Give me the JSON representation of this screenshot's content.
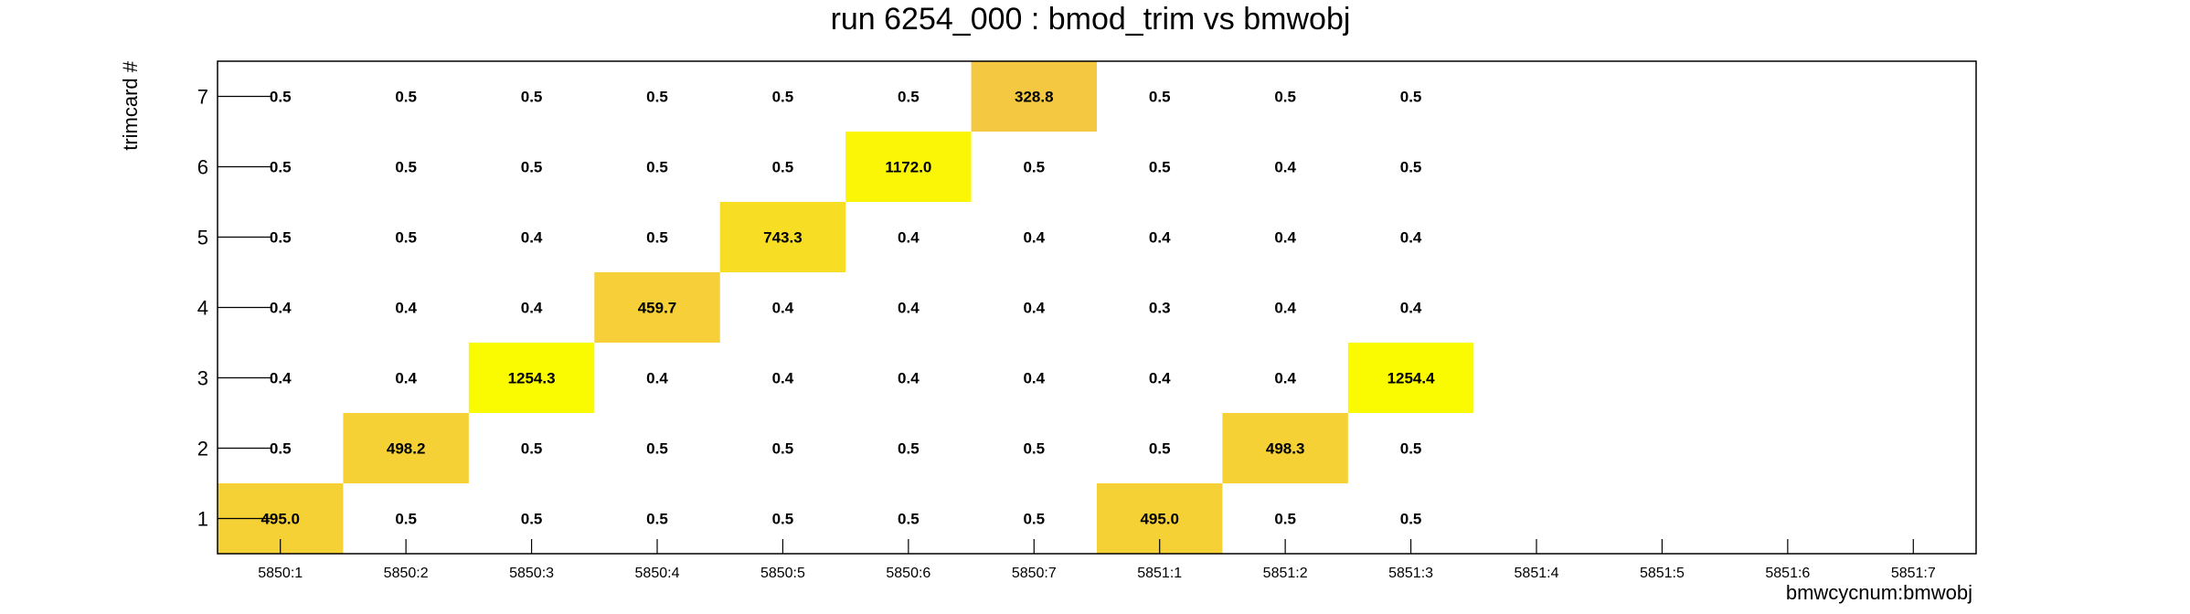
{
  "chart_data": {
    "type": "heatmap",
    "title": "run 6254_000 : bmod_trim vs bmwobj",
    "xlabel": "bmwcycnum:bmwobj",
    "ylabel": "trimcard #",
    "x_categories": [
      "5850:1",
      "5850:2",
      "5850:3",
      "5850:4",
      "5850:5",
      "5850:6",
      "5850:7",
      "5851:1",
      "5851:2",
      "5851:3",
      "5851:4",
      "5851:5",
      "5851:6",
      "5851:7"
    ],
    "y_categories": [
      "1",
      "2",
      "3",
      "4",
      "5",
      "6",
      "7"
    ],
    "values": [
      [
        "495.0",
        "0.5",
        "0.5",
        "0.5",
        "0.5",
        "0.5",
        "0.5",
        "495.0",
        "0.5",
        "0.5",
        null,
        null,
        null,
        null
      ],
      [
        "0.5",
        "498.2",
        "0.5",
        "0.5",
        "0.5",
        "0.5",
        "0.5",
        "0.5",
        "498.3",
        "0.5",
        null,
        null,
        null,
        null
      ],
      [
        "0.4",
        "0.4",
        "1254.3",
        "0.4",
        "0.4",
        "0.4",
        "0.4",
        "0.4",
        "0.4",
        "1254.4",
        null,
        null,
        null,
        null
      ],
      [
        "0.4",
        "0.4",
        "0.4",
        "459.7",
        "0.4",
        "0.4",
        "0.4",
        "0.3",
        "0.4",
        "0.4",
        null,
        null,
        null,
        null
      ],
      [
        "0.5",
        "0.5",
        "0.4",
        "0.5",
        "743.3",
        "0.4",
        "0.4",
        "0.4",
        "0.4",
        "0.4",
        null,
        null,
        null,
        null
      ],
      [
        "0.5",
        "0.5",
        "0.5",
        "0.5",
        "0.5",
        "1172.0",
        "0.5",
        "0.5",
        "0.4",
        "0.5",
        null,
        null,
        null,
        null
      ],
      [
        "0.5",
        "0.5",
        "0.5",
        "0.5",
        "0.5",
        "0.5",
        "328.8",
        "0.5",
        "0.5",
        "0.5",
        null,
        null,
        null,
        null
      ]
    ],
    "colorscale": [
      "#f5c842",
      "#fafa00"
    ],
    "grid": false,
    "legend": "none"
  }
}
